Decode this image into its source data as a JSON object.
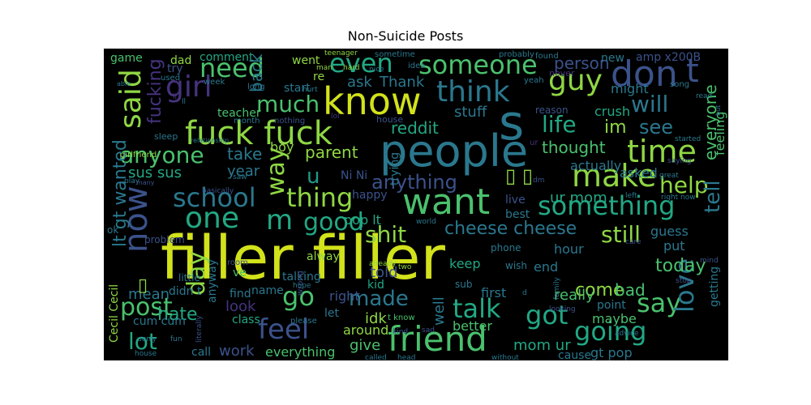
{
  "title": "Non-Suicide Posts",
  "palette": {
    "background": "#000000",
    "yellow": "#d2e21b",
    "lime": "#8fd744",
    "green": "#4ac16d",
    "teal": "#22a884",
    "cyan": "#1f9a8a",
    "blue": "#2a788e",
    "slate": "#3b528b",
    "indigo": "#46337e",
    "purple": "#440154"
  },
  "words": [
    {
      "text": "filler filler",
      "color": "#d2e21b"
    },
    {
      "text": "people",
      "color": "#2a788e"
    },
    {
      "text": "want",
      "color": "#4ac16d"
    },
    {
      "text": "know",
      "color": "#d2e21b"
    },
    {
      "text": "fuck fuck",
      "color": "#8fd744"
    },
    {
      "text": "friend",
      "color": "#4ac16d"
    },
    {
      "text": "think",
      "color": "#2a788e"
    },
    {
      "text": "s",
      "color": "#2a788e"
    },
    {
      "text": "don",
      "color": "#3b528b"
    },
    {
      "text": "t",
      "color": "#3b528b"
    },
    {
      "text": "time",
      "color": "#8fd744"
    },
    {
      "text": "make",
      "color": "#8fd744"
    },
    {
      "text": "one",
      "color": "#22a884"
    },
    {
      "text": "m",
      "color": "#22a884"
    },
    {
      "text": "now",
      "color": "#3b528b"
    },
    {
      "text": "school",
      "color": "#2a788e"
    },
    {
      "text": "thing",
      "color": "#8fd744"
    },
    {
      "text": "something",
      "color": "#22a884"
    },
    {
      "text": "feel",
      "color": "#3b528b"
    },
    {
      "text": "going",
      "color": "#22a884"
    },
    {
      "text": "got",
      "color": "#22a884"
    },
    {
      "text": "post",
      "color": "#4ac16d"
    },
    {
      "text": "say",
      "color": "#4ac16d"
    },
    {
      "text": "love",
      "color": "#2a788e"
    },
    {
      "text": "talk",
      "color": "#22a884"
    },
    {
      "text": "guy",
      "color": "#8fd744"
    },
    {
      "text": "girl",
      "color": "#46337e"
    },
    {
      "text": "said",
      "color": "#8fd744"
    },
    {
      "text": "need",
      "color": "#4ac16d"
    },
    {
      "text": "even",
      "color": "#22a884"
    },
    {
      "text": "someone",
      "color": "#4ac16d"
    },
    {
      "text": "will",
      "color": "#2a788e"
    },
    {
      "text": "much",
      "color": "#4ac16d"
    },
    {
      "text": "life",
      "color": "#22a884"
    },
    {
      "text": "anyone",
      "color": "#4ac16d"
    },
    {
      "text": "lt gt wanted",
      "color": "#2a788e"
    },
    {
      "text": "fucking",
      "color": "#46337e"
    },
    {
      "text": "help",
      "color": "#8fd744"
    },
    {
      "text": "tell",
      "color": "#2a788e"
    },
    {
      "text": "go",
      "color": "#4ac16d"
    },
    {
      "text": "good",
      "color": "#22a884"
    },
    {
      "text": "shit",
      "color": "#8fd744"
    },
    {
      "text": "still",
      "color": "#8fd744"
    },
    {
      "text": "day",
      "color": "#8fd744"
    },
    {
      "text": "lot",
      "color": "#22a884"
    },
    {
      "text": "made",
      "color": "#2a788e"
    },
    {
      "text": "way",
      "color": "#8fd744"
    },
    {
      "text": "u",
      "color": "#1f9a8a"
    },
    {
      "text": "anything",
      "color": "#3b528b"
    },
    {
      "text": "cheese cheese",
      "color": "#2a788e"
    },
    {
      "text": "today",
      "color": "#4ac16d"
    },
    {
      "text": "see",
      "color": "#2a788e"
    },
    {
      "text": "im",
      "color": "#8fd744"
    },
    {
      "text": "thought",
      "color": "#4ac16d"
    },
    {
      "text": "come",
      "color": "#8fd744"
    },
    {
      "text": "bad",
      "color": "#4ac16d"
    },
    {
      "text": "really",
      "color": "#4ac16d"
    },
    {
      "text": "hate",
      "color": "#22a884"
    },
    {
      "text": "mean",
      "color": "#2a788e"
    },
    {
      "text": "work",
      "color": "#3b528b"
    },
    {
      "text": "well",
      "color": "#2a788e"
    },
    {
      "text": "idk",
      "color": "#8fd744"
    },
    {
      "text": "told",
      "color": "#3b528b"
    },
    {
      "text": "look",
      "color": "#46337e"
    },
    {
      "text": "year",
      "color": "#2a788e"
    },
    {
      "text": "take",
      "color": "#2a788e"
    },
    {
      "text": "sus sus",
      "color": "#22a884"
    },
    {
      "text": "reddit",
      "color": "#22a884"
    },
    {
      "text": "stuff",
      "color": "#2a788e"
    },
    {
      "text": "ask",
      "color": "#2a788e"
    },
    {
      "text": "Thank",
      "color": "#2a788e"
    },
    {
      "text": "back",
      "color": "#2a788e"
    },
    {
      "text": "parent",
      "color": "#8fd744"
    },
    {
      "text": "everyone",
      "color": "#4ac16d"
    },
    {
      "text": "feeling",
      "color": "#4ac16d"
    },
    {
      "text": "person",
      "color": "#3b528b"
    },
    {
      "text": "might",
      "color": "#2a788e"
    },
    {
      "text": "crush",
      "color": "#22a884"
    },
    {
      "text": "ur mom",
      "color": "#22a884"
    },
    {
      "text": "mom ur",
      "color": "#22a884"
    },
    {
      "text": "gt pop",
      "color": "#2a788e"
    },
    {
      "text": "maybe",
      "color": "#4ac16d"
    },
    {
      "text": "give",
      "color": "#4ac16d"
    },
    {
      "text": "around",
      "color": "#8fd744"
    },
    {
      "text": "everything",
      "color": "#4ac16d"
    },
    {
      "text": "cum cum",
      "color": "#2a788e"
    },
    {
      "text": "Cecil Cecil",
      "color": "#8fd744"
    },
    {
      "text": "guess",
      "color": "#2a788e"
    },
    {
      "text": "put",
      "color": "#2a788e"
    },
    {
      "text": "getting",
      "color": "#2a788e"
    },
    {
      "text": "asked",
      "color": "#2a788e"
    },
    {
      "text": "actually",
      "color": "#2a788e"
    },
    {
      "text": "live",
      "color": "#3b528b"
    },
    {
      "text": "best",
      "color": "#2a788e"
    },
    {
      "text": "hour",
      "color": "#2a788e"
    },
    {
      "text": "end",
      "color": "#2a788e"
    },
    {
      "text": "keep",
      "color": "#22a884"
    },
    {
      "text": "first",
      "color": "#2a788e"
    },
    {
      "text": "pop lt",
      "color": "#22a884"
    },
    {
      "text": "alway",
      "color": "#8fd744"
    },
    {
      "text": "talking",
      "color": "#2a788e"
    },
    {
      "text": "kid",
      "color": "#22a884"
    },
    {
      "text": "let",
      "color": "#2a788e"
    },
    {
      "text": "right",
      "color": "#3b528b"
    },
    {
      "text": "name",
      "color": "#2a788e"
    },
    {
      "text": "find",
      "color": "#2a788e"
    },
    {
      "text": "class",
      "color": "#22a884"
    },
    {
      "text": "call",
      "color": "#2a788e"
    },
    {
      "text": "better",
      "color": "#4ac16d"
    },
    {
      "text": "point",
      "color": "#2a788e"
    },
    {
      "text": "cause",
      "color": "#2a788e"
    },
    {
      "text": "trying",
      "color": "#2a788e"
    },
    {
      "text": "happy",
      "color": "#3b528b"
    },
    {
      "text": "Ni Ni",
      "color": "#3b528b"
    },
    {
      "text": "boy",
      "color": "#8fd744"
    },
    {
      "text": "went",
      "color": "#8fd744"
    },
    {
      "text": "re",
      "color": "#8fd744"
    },
    {
      "text": "comment",
      "color": "#22a884"
    },
    {
      "text": "dad",
      "color": "#8fd744"
    },
    {
      "text": "game",
      "color": "#4ac16d"
    },
    {
      "text": "try",
      "color": "#3b528b"
    },
    {
      "text": "new",
      "color": "#2a788e"
    },
    {
      "text": "amp x200B",
      "color": "#3b528b"
    },
    {
      "text": "start",
      "color": "#2a788e"
    },
    {
      "text": "teacher",
      "color": "#4ac16d"
    },
    {
      "text": "didn t",
      "color": "#2a788e"
    },
    {
      "text": "ve",
      "color": "#4ac16d"
    },
    {
      "text": "anyway",
      "color": "#2a788e"
    },
    {
      "text": "sub",
      "color": "#2a788e"
    },
    {
      "text": "wish",
      "color": "#2a788e"
    },
    {
      "text": "phone",
      "color": "#2a788e"
    },
    {
      "text": "little",
      "color": "#2a788e"
    },
    {
      "text": "room",
      "color": "#3b528b"
    },
    {
      "text": "ok",
      "color": "#2a788e"
    },
    {
      "text": "problem",
      "color": "#3b528b"
    },
    {
      "text": "sleep",
      "color": "#2a788e"
    },
    {
      "text": "girlfriend",
      "color": "#8fd744"
    },
    {
      "text": "used",
      "color": "#2a788e"
    },
    {
      "text": "week",
      "color": "#2a788e"
    },
    {
      "text": "long",
      "color": "#2a788e"
    },
    {
      "text": "month",
      "color": "#2a788e"
    },
    {
      "text": "nothing",
      "color": "#3b528b"
    },
    {
      "text": "house",
      "color": "#3b528b"
    },
    {
      "text": "reason",
      "color": "#3b528b"
    },
    {
      "text": "never",
      "color": "#46337e"
    },
    {
      "text": "yeah",
      "color": "#2a788e"
    },
    {
      "text": "song",
      "color": "#2a788e"
    },
    {
      "text": "found",
      "color": "#2a788e"
    },
    {
      "text": "probably",
      "color": "#2a788e"
    },
    {
      "text": "idea",
      "color": "#2a788e"
    },
    {
      "text": "sometime",
      "color": "#2a788e"
    },
    {
      "text": "teenager",
      "color": "#8fd744"
    },
    {
      "text": "hard",
      "color": "#8fd744"
    },
    {
      "text": "man",
      "color": "#8fd744"
    },
    {
      "text": "nice",
      "color": "#2a788e"
    },
    {
      "text": "hurt",
      "color": "#2a788e"
    },
    {
      "text": "read",
      "color": "#2a788e"
    },
    {
      "text": "ll",
      "color": "#2a788e"
    },
    {
      "text": "able",
      "color": "#2a788e"
    },
    {
      "text": "relationship",
      "color": "#2a788e"
    },
    {
      "text": "play",
      "color": "#2a788e"
    },
    {
      "text": "many",
      "color": "#3b528b"
    },
    {
      "text": "basically",
      "color": "#3b528b"
    },
    {
      "text": "started",
      "color": "#2a788e"
    },
    {
      "text": "saying",
      "color": "#3b528b"
    },
    {
      "text": "great",
      "color": "#2a788e"
    },
    {
      "text": "left",
      "color": "#2a788e"
    },
    {
      "text": "right now",
      "color": "#2a788e"
    },
    {
      "text": "saw",
      "color": "#2a788e"
    },
    {
      "text": "world",
      "color": "#2a788e"
    },
    {
      "text": "dm",
      "color": "#3b528b"
    },
    {
      "text": "care",
      "color": "#3b528b"
    },
    {
      "text": "mind",
      "color": "#3b528b"
    },
    {
      "text": "stop",
      "color": "#3b528b"
    },
    {
      "text": "hope",
      "color": "#2a788e"
    },
    {
      "text": "wrong",
      "color": "#3b528b"
    },
    {
      "text": "already",
      "color": "#8fd744"
    },
    {
      "text": "two",
      "color": "#8fd744"
    },
    {
      "text": "family",
      "color": "#2a788e"
    },
    {
      "text": "looking",
      "color": "#3b528b"
    },
    {
      "text": "please",
      "color": "#2a788e"
    },
    {
      "text": "t know",
      "color": "#4ac16d"
    },
    {
      "text": "kind",
      "color": "#3b528b"
    },
    {
      "text": "sad",
      "color": "#3b528b"
    },
    {
      "text": "called",
      "color": "#2a788e"
    },
    {
      "text": "head",
      "color": "#2a788e"
    },
    {
      "text": "without",
      "color": "#2a788e"
    },
    {
      "text": "advice",
      "color": "#2a788e"
    },
    {
      "text": "sorry",
      "color": "#2a788e"
    },
    {
      "text": "fun",
      "color": "#2a788e"
    },
    {
      "text": "literally",
      "color": "#3b528b"
    },
    {
      "text": "d",
      "color": "#2a788e"
    },
    {
      "text": "lol",
      "color": "#46337e"
    },
    {
      "text": "house",
      "color": "#2a788e"
    },
    {
      "text": "but",
      "color": "#2a788e"
    },
    {
      "text": "ur",
      "color": "#46337e"
    },
    {
      "text": "ll",
      "color": "#46337e"
    },
    {
      "text": "▯",
      "color": "#8fd744"
    },
    {
      "text": "▯ ▯",
      "color": "#8fd744"
    }
  ]
}
